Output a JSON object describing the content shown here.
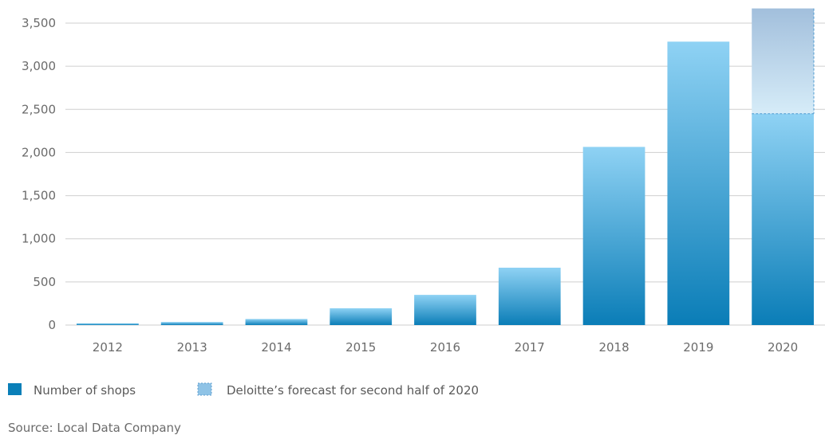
{
  "chart_data": {
    "type": "bar",
    "categories": [
      "2012",
      "2013",
      "2014",
      "2015",
      "2016",
      "2017",
      "2018",
      "2019",
      "2020"
    ],
    "series": [
      {
        "name": "Number of shops",
        "values": [
          20,
          35,
          70,
          195,
          350,
          665,
          2065,
          3285,
          2450
        ],
        "color": "#0a7fb8"
      },
      {
        "name": "Deloitte’s forecast for second half of 2020",
        "values": [
          0,
          0,
          0,
          0,
          0,
          0,
          0,
          0,
          1220
        ],
        "color": "#8fc3e6"
      }
    ],
    "stacked": true,
    "y_ticks": [
      0,
      500,
      1000,
      1500,
      2000,
      2500,
      3000,
      3500
    ],
    "y_tick_labels": [
      "0",
      "500",
      "1,000",
      "1,500",
      "2,000",
      "2,500",
      "3,000",
      "3,500"
    ],
    "ylim": [
      0,
      3500
    ],
    "grid": true,
    "legend_position": "bottom-left",
    "source": "Source: Local Data Company"
  }
}
